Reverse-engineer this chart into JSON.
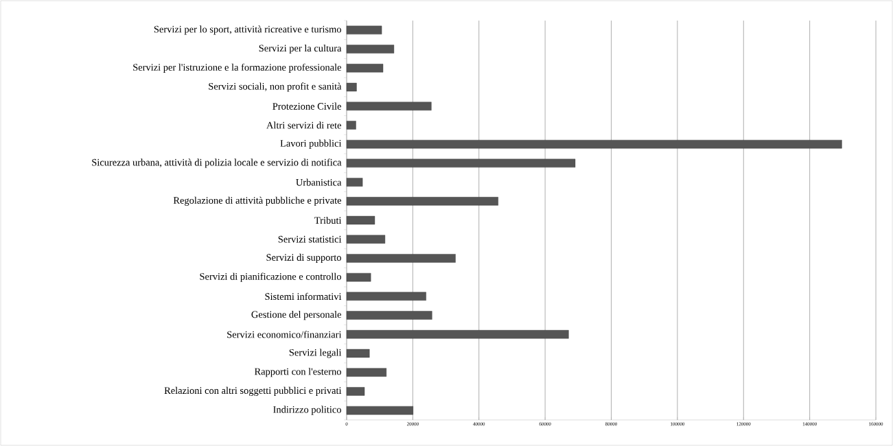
{
  "chart_data": {
    "type": "bar",
    "orientation": "horizontal",
    "categories": [
      "Servizi per lo sport, attività ricreative e turismo",
      "Servizi per la cultura",
      "Servizi per l'istruzione e la formazione professionale",
      "Servizi sociali, non profit e sanità",
      "Protezione Civile",
      "Altri servizi di rete",
      "Lavori pubblici",
      "Sicurezza urbana, attività di polizia locale e servizio di notifica",
      "Urbanistica",
      "Regolazione di attività pubbliche e private",
      "Tributi",
      "Servizi statistici",
      "Servizi di supporto",
      "Servizi di pianificazione e controllo",
      "Sistemi informativi",
      "Gestione del personale",
      "Servizi economico/finanziari",
      "Servizi legali",
      "Rapporti con l'esterno",
      "Relazioni con altri soggetti pubblici e privati",
      "Indirizzo politico"
    ],
    "values": [
      10600,
      14300,
      11000,
      3000,
      25600,
      2800,
      149700,
      69100,
      4800,
      45800,
      8500,
      11600,
      32900,
      7300,
      24000,
      25800,
      67100,
      6900,
      12000,
      5400,
      20100
    ],
    "color": "#555555",
    "xlim": [
      0,
      160000
    ],
    "xticks": [
      0,
      20000,
      40000,
      60000,
      80000,
      100000,
      120000,
      140000,
      160000
    ],
    "grid": "x"
  }
}
